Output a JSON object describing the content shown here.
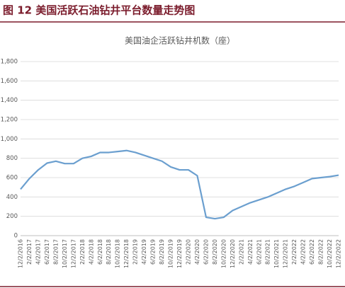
{
  "figure_title": "图 12 美国活跃石油钻井平台数量走势图",
  "chart_data": {
    "type": "line",
    "title": "美国油企活跃钻井机数（座）",
    "categories": [
      "12/2/2016",
      "2/2/2017",
      "4/2/2017",
      "6/2/2017",
      "8/2/2017",
      "10/2/2017",
      "12/2/2017",
      "2/2/2018",
      "4/2/2018",
      "6/2/2018",
      "8/2/2018",
      "10/2/2018",
      "12/2/2018",
      "2/2/2019",
      "4/2/2019",
      "6/2/2019",
      "8/2/2019",
      "10/2/2019",
      "12/2/2019",
      "2/2/2020",
      "4/2/2020",
      "6/2/2020",
      "8/2/2020",
      "10/2/2020",
      "12/2/2020",
      "2/2/2021",
      "4/2/2021",
      "6/2/2021",
      "8/2/2021",
      "10/2/2021",
      "12/2/2021",
      "2/2/2022",
      "4/2/2022",
      "6/2/2022",
      "8/2/2022",
      "10/2/2022",
      "12/2/2022"
    ],
    "values": [
      480,
      590,
      680,
      750,
      770,
      745,
      745,
      800,
      820,
      860,
      860,
      870,
      880,
      860,
      830,
      800,
      770,
      710,
      680,
      680,
      620,
      190,
      175,
      190,
      260,
      300,
      340,
      370,
      400,
      440,
      480,
      510,
      550,
      590,
      600,
      610,
      625
    ],
    "color": "#6b9fcf",
    "ylim": [
      0,
      1800
    ],
    "yticks": [
      0,
      200,
      400,
      600,
      800,
      {
        "value": 1000,
        "label": "1,000"
      },
      {
        "value": 1200,
        "label": "1,200"
      },
      {
        "value": 1400,
        "label": "1,400"
      },
      {
        "value": 1600,
        "label": "1,600"
      },
      {
        "value": 1800,
        "label": "1,800"
      }
    ],
    "grid": true
  }
}
